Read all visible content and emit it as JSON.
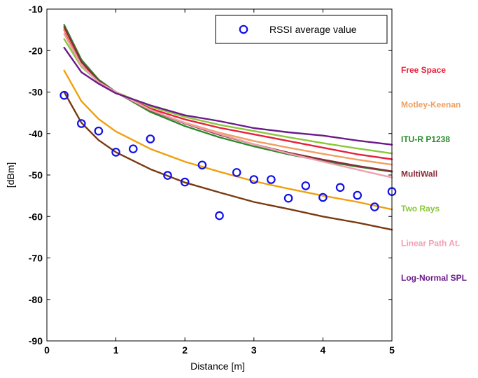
{
  "chart_data": {
    "type": "line",
    "xlabel": "Distance [m]",
    "ylabel": "[dBm]",
    "xlim": [
      0,
      5
    ],
    "ylim": [
      -90,
      -10
    ],
    "xticks": [
      0,
      1,
      2,
      3,
      4,
      5
    ],
    "yticks": [
      -10,
      -20,
      -30,
      -40,
      -50,
      -60,
      -70,
      -80,
      -90
    ],
    "grid": false,
    "legend": {
      "position": "top-right",
      "entries": [
        "RSSI average value"
      ]
    },
    "scatter": {
      "name": "RSSI average value",
      "color": "#1010e8",
      "x": [
        0.25,
        0.5,
        0.75,
        1.0,
        1.25,
        1.5,
        1.75,
        2.0,
        2.25,
        2.5,
        2.75,
        3.0,
        3.25,
        3.5,
        3.75,
        4.0,
        4.25,
        4.5,
        4.75,
        5.0
      ],
      "y": [
        -30.8,
        -37.6,
        -39.4,
        -44.5,
        -43.7,
        -41.3,
        -50.1,
        -51.7,
        -47.6,
        -59.8,
        -49.4,
        -51.1,
        -51.1,
        -55.6,
        -52.6,
        -55.4,
        -53.0,
        -54.9,
        -57.7,
        -54.0
      ]
    },
    "x": [
      0.25,
      0.5,
      0.75,
      1.0,
      1.5,
      2.0,
      2.5,
      3.0,
      3.5,
      4.0,
      4.5,
      5.0
    ],
    "series": [
      {
        "name": "Free Space",
        "color": "#e8203c",
        "values": [
          -15.0,
          -23.5,
          -27.5,
          -30.0,
          -34.0,
          -36.6,
          -38.6,
          -40.2,
          -41.8,
          -43.4,
          -45.0,
          -46.2
        ]
      },
      {
        "name": "Motley-Keenan",
        "color": "#f0a060",
        "values": [
          -14.8,
          -22.8,
          -27.2,
          -30.0,
          -34.4,
          -37.4,
          -39.8,
          -41.8,
          -43.4,
          -44.9,
          -46.3,
          -47.5
        ]
      },
      {
        "name": "ITU-R P1238",
        "color": "#2a8a2a",
        "values": [
          -13.8,
          -22.2,
          -27.0,
          -30.0,
          -34.8,
          -38.2,
          -40.9,
          -43.1,
          -45.0,
          -46.6,
          -48.0,
          -49.2
        ]
      },
      {
        "name": "MultiWall",
        "color": "#8b2a3a",
        "values": [
          -14.3,
          -22.7,
          -27.3,
          -30.0,
          -34.4,
          -37.6,
          -40.3,
          -42.6,
          -44.6,
          -46.3,
          -47.8,
          -49.1
        ]
      },
      {
        "name": "Two Rays",
        "color": "#88c83a",
        "values": [
          -17.2,
          -23.9,
          -27.6,
          -30.0,
          -33.5,
          -36.0,
          -37.9,
          -39.4,
          -40.9,
          -42.3,
          -43.6,
          -44.8
        ]
      },
      {
        "name": "Linear Path At.",
        "color": "#f0a0b0",
        "values": [
          -16.0,
          -23.6,
          -27.6,
          -30.0,
          -34.3,
          -37.5,
          -40.1,
          -42.6,
          -44.8,
          -46.8,
          -48.7,
          -50.6
        ]
      },
      {
        "name": "Log-Normal SPL",
        "color": "#6a1a8a",
        "values": [
          -19.3,
          -25.2,
          -28.0,
          -30.3,
          -33.2,
          -35.6,
          -37.0,
          -38.7,
          -39.7,
          -40.5,
          -41.7,
          -42.7
        ]
      },
      {
        "name": "",
        "color": "#f0a010",
        "values": [
          -24.8,
          -32.2,
          -36.5,
          -39.5,
          -43.7,
          -46.8,
          -49.2,
          -51.5,
          -53.3,
          -55.0,
          -56.5,
          -58.3
        ]
      },
      {
        "name": "",
        "color": "#7a3a10",
        "values": [
          -30.0,
          -37.4,
          -41.6,
          -44.5,
          -48.6,
          -51.8,
          -54.2,
          -56.5,
          -58.2,
          -60.0,
          -61.5,
          -63.2
        ]
      }
    ],
    "side_labels": [
      {
        "text": "Free Space",
        "color": "#e8203c"
      },
      {
        "text": "Motley-Keenan",
        "color": "#f0a060"
      },
      {
        "text": "ITU-R P1238",
        "color": "#2a8a2a"
      },
      {
        "text": "MultiWall",
        "color": "#8b2a3a"
      },
      {
        "text": "Two Rays",
        "color": "#88c83a"
      },
      {
        "text": "Linear Path At.",
        "color": "#f0a0b0"
      },
      {
        "text": "Log-Normal SPL",
        "color": "#6a1a8a"
      }
    ]
  }
}
